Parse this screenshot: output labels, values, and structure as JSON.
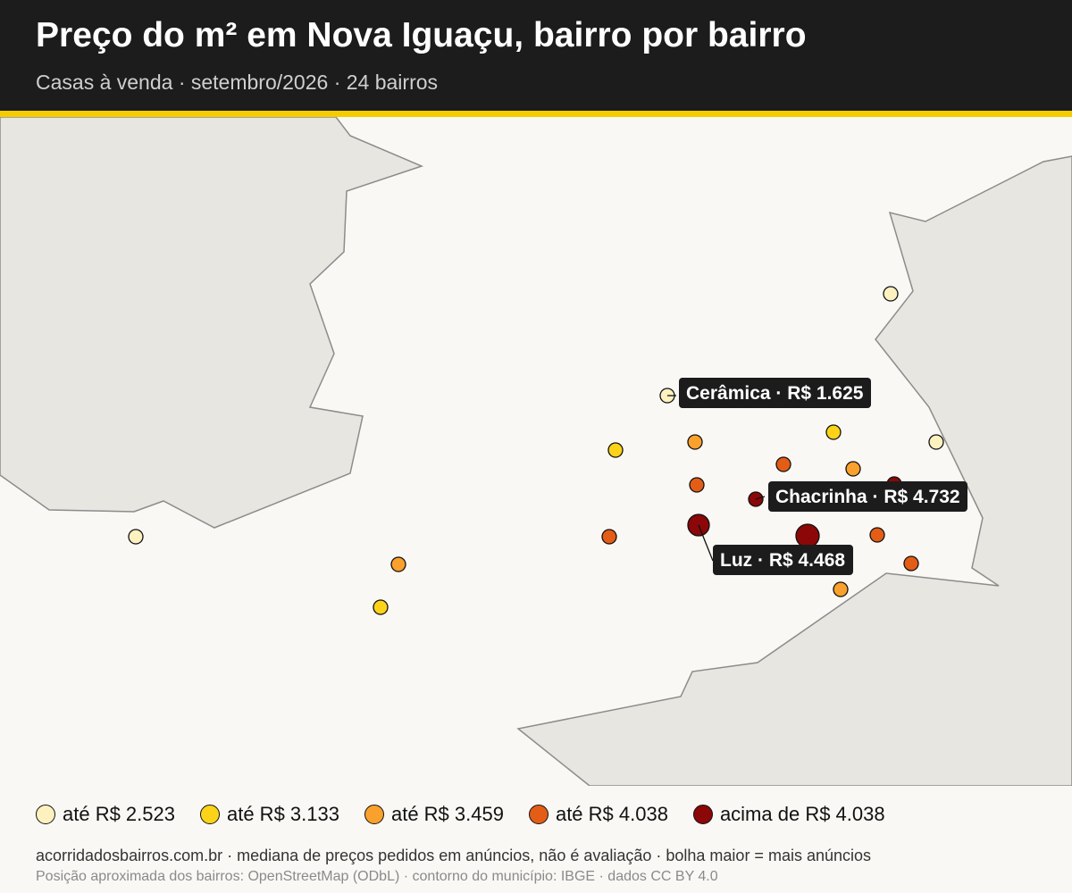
{
  "header": {
    "title": "Preço do m² em Nova Iguaçu, bairro por bairro",
    "subtitle": "Casas à venda · setembro/2026 · 24 bairros"
  },
  "colors": {
    "header_bg": "#1c1c1c",
    "accent": "#f5cc00",
    "map_bg": "#f9f8f5",
    "outside_land": "#e8e6e0",
    "boundary": "#8c8c8c",
    "label_bg": "#1c1c1c"
  },
  "legend": {
    "items": [
      {
        "label": "até R$ 2.523",
        "color": "#fdf1c0"
      },
      {
        "label": "até R$ 3.133",
        "color": "#fdd319"
      },
      {
        "label": "até R$ 3.459",
        "color": "#f9a12c"
      },
      {
        "label": "até R$ 4.038",
        "color": "#e35d16"
      },
      {
        "label": "acima de R$ 4.038",
        "color": "#8b0708"
      }
    ]
  },
  "callouts": [
    {
      "name": "Cerâmica",
      "text": "Cerâmica · R$ 1.625",
      "price": 1625
    },
    {
      "name": "Chacrinha",
      "text": "Chacrinha · R$ 4.732",
      "price": 4732
    },
    {
      "name": "Luz",
      "text": "Luz · R$ 4.468",
      "price": 4468
    }
  ],
  "footer": {
    "line1": "acorridadosbairros.com.br · mediana de preços pedidos em anúncios, não é avaliação · bolha maior = mais anúncios",
    "line2": "Posição aproximada dos bairros: OpenStreetMap (ODbL) · contorno do município: IBGE · dados CC BY 4.0"
  }
}
